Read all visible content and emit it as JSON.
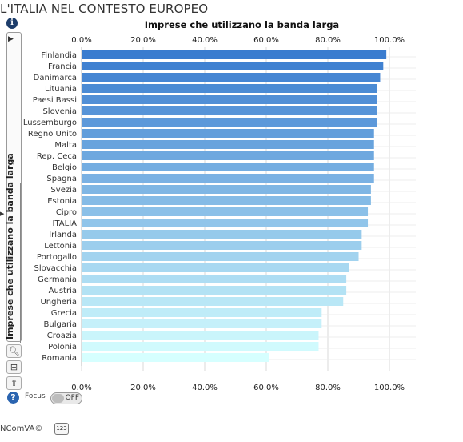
{
  "page": {
    "title": "L'ITALIA NEL CONTESTO EUROPEO"
  },
  "sidebar": {
    "tab_label": "Imprese che utilizzano la banda larga",
    "focus_label": "Focus",
    "focus_state": "OFF"
  },
  "footer": {
    "brand": "NComVA©",
    "badge": "123"
  },
  "icons": {
    "info": "info-icon",
    "play": "play-icon",
    "search": "search-icon",
    "crop": "crop-icon",
    "export": "export-icon",
    "help": "help-icon"
  },
  "colors": {
    "bar_dark": "#3a7ccf",
    "bar_light": "#d6ffff",
    "grid": "#d9d9d9",
    "help": "#2a64b0",
    "info": "#1d3d6b"
  },
  "chart_data": {
    "type": "bar",
    "orientation": "horizontal",
    "title": "Imprese che utilizzano la banda larga",
    "xlim": [
      0,
      100
    ],
    "tick_labels": [
      "0.0%",
      "20.0%",
      "40.0%",
      "60.0%",
      "80.0%",
      "100.0%"
    ],
    "categories": [
      "Finlandia",
      "Francia",
      "Danimarca",
      "Lituania",
      "Paesi Bassi",
      "Slovenia",
      "Lussemburgo",
      "Regno Unito",
      "Malta",
      "Rep. Ceca",
      "Belgio",
      "Spagna",
      "Svezia",
      "Estonia",
      "Cipro",
      "ITALIA",
      "Irlanda",
      "Lettonia",
      "Portogallo",
      "Slovacchia",
      "Germania",
      "Austria",
      "Ungheria",
      "Grecia",
      "Bulgaria",
      "Croazia",
      "Polonia",
      "Romania"
    ],
    "values": [
      99,
      98,
      97,
      96,
      96,
      96,
      96,
      95,
      95,
      95,
      95,
      95,
      94,
      94,
      93,
      93,
      91,
      91,
      90,
      87,
      86,
      86,
      85,
      78,
      78,
      77,
      77,
      61
    ],
    "grid": true,
    "axis_position": "top and bottom"
  }
}
